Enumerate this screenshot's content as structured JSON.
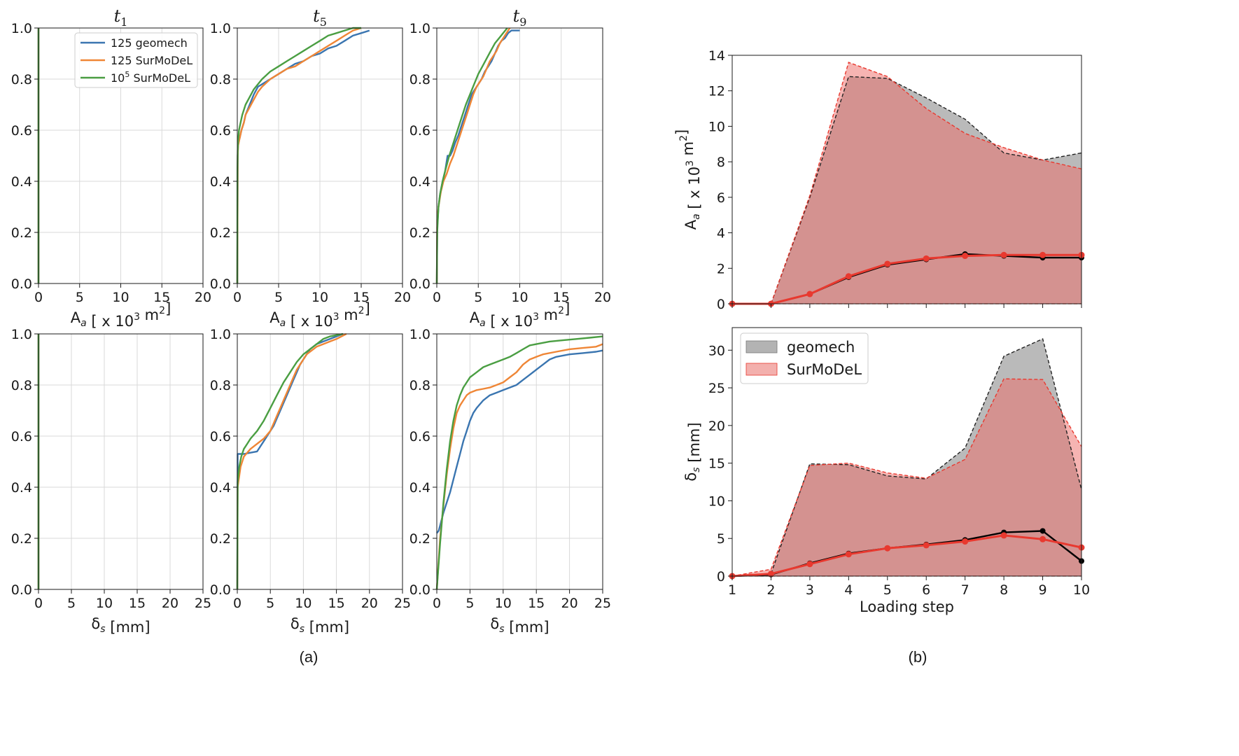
{
  "colors": {
    "geomech125": "#3a75b0",
    "surmodel125": "#ef8636",
    "surmodel1e5": "#4a9e42",
    "geomech": "#000000",
    "surmodel": "#e8392f"
  },
  "captions": {
    "a": "(a)",
    "b": "(b)"
  },
  "chart_data": [
    {
      "type": "line",
      "title": "t1",
      "xlabel": "A_a [ x 10^3 m^2]",
      "ylabel": "",
      "xlim": [
        0,
        20
      ],
      "ylim": [
        0,
        1
      ],
      "xticks": [
        "0",
        "5",
        "10",
        "15",
        "20"
      ],
      "yticks": [
        "0.0",
        "0.2",
        "0.4",
        "0.6",
        "0.8",
        "1.0"
      ],
      "legend": [
        "125 geomech",
        "125 SurMoDeL",
        "10^5 SurMoDeL"
      ],
      "series": [
        {
          "name": "125 geomech",
          "x": [
            0,
            0
          ],
          "y": [
            0,
            1
          ]
        },
        {
          "name": "125 SurMoDeL",
          "x": [
            0,
            0
          ],
          "y": [
            0,
            1
          ]
        },
        {
          "name": "10^5 SurMoDeL",
          "x": [
            0,
            0
          ],
          "y": [
            0,
            1
          ]
        }
      ]
    },
    {
      "type": "line",
      "title": "t5",
      "xlabel": "A_a [ x 10^3 m^2]",
      "xlim": [
        0,
        20
      ],
      "ylim": [
        0,
        1
      ],
      "xticks": [
        "0",
        "5",
        "10",
        "15",
        "20"
      ],
      "yticks": [
        "0.0",
        "0.2",
        "0.4",
        "0.6",
        "0.8",
        "1.0"
      ],
      "series": [
        {
          "name": "125 geomech",
          "x": [
            0,
            0.05,
            0.1,
            0.3,
            0.5,
            0.8,
            1.0,
            1.5,
            2.0,
            2.5,
            3.0,
            4.0,
            5.0,
            6.0,
            7.0,
            8.0,
            9.0,
            10.0,
            11.0,
            12.0,
            13.0,
            14.0,
            15.0,
            16.0
          ],
          "y": [
            0,
            0.5,
            0.55,
            0.57,
            0.6,
            0.63,
            0.66,
            0.7,
            0.74,
            0.77,
            0.78,
            0.8,
            0.82,
            0.84,
            0.86,
            0.87,
            0.89,
            0.9,
            0.92,
            0.93,
            0.95,
            0.97,
            0.98,
            0.99
          ]
        },
        {
          "name": "125 SurMoDeL",
          "x": [
            0,
            0.05,
            0.1,
            0.3,
            0.5,
            0.8,
            1.0,
            1.5,
            2.0,
            2.5,
            3.0,
            4.0,
            5.0,
            6.0,
            7.0,
            8.0,
            9.0,
            10.0,
            11.0,
            12.0,
            13.0,
            14.0,
            15.0
          ],
          "y": [
            0,
            0.5,
            0.54,
            0.57,
            0.6,
            0.63,
            0.66,
            0.69,
            0.72,
            0.75,
            0.77,
            0.8,
            0.82,
            0.84,
            0.85,
            0.87,
            0.89,
            0.91,
            0.93,
            0.95,
            0.97,
            0.99,
            1.0
          ]
        },
        {
          "name": "10^5 SurMoDeL",
          "x": [
            0,
            0.02,
            0.05,
            0.1,
            0.2,
            0.4,
            0.6,
            1.0,
            1.5,
            2.0,
            3.0,
            4.0,
            5.0,
            6.0,
            7.0,
            8.0,
            9.0,
            10.0,
            11.0,
            12.0,
            13.0,
            14.0,
            15.0
          ],
          "y": [
            0,
            0.45,
            0.52,
            0.56,
            0.6,
            0.63,
            0.66,
            0.7,
            0.73,
            0.76,
            0.8,
            0.83,
            0.85,
            0.87,
            0.89,
            0.91,
            0.93,
            0.95,
            0.97,
            0.98,
            0.99,
            1.0,
            1.0
          ]
        }
      ]
    },
    {
      "type": "line",
      "title": "t9",
      "xlabel": "A_a [ x 10^3 m^2]",
      "xlim": [
        0,
        20
      ],
      "ylim": [
        0,
        1
      ],
      "xticks": [
        "0",
        "5",
        "10",
        "15",
        "20"
      ],
      "yticks": [
        "0.0",
        "0.2",
        "0.4",
        "0.6",
        "0.8",
        "1.0"
      ],
      "series": [
        {
          "name": "125 geomech",
          "x": [
            0,
            0.05,
            0.2,
            0.4,
            0.7,
            1.0,
            1.3,
            1.6,
            1.9,
            2.2,
            2.6,
            3.0,
            3.4,
            3.8,
            4.2,
            4.6,
            5.0,
            5.4,
            5.8,
            6.2,
            6.6,
            7.0,
            7.4,
            7.8,
            8.2,
            8.6,
            9.0,
            10.0
          ],
          "y": [
            0,
            0.22,
            0.3,
            0.35,
            0.4,
            0.44,
            0.5,
            0.5,
            0.52,
            0.55,
            0.58,
            0.62,
            0.66,
            0.7,
            0.74,
            0.76,
            0.78,
            0.8,
            0.83,
            0.85,
            0.87,
            0.9,
            0.93,
            0.95,
            0.96,
            0.98,
            0.99,
            0.99
          ]
        },
        {
          "name": "125 SurMoDeL",
          "x": [
            0,
            0.05,
            0.2,
            0.5,
            0.8,
            1.2,
            1.6,
            2.0,
            2.4,
            2.8,
            3.2,
            3.6,
            4.0,
            4.4,
            4.8,
            5.2,
            5.6,
            6.0,
            6.4,
            6.8,
            7.2,
            7.6,
            8.0,
            8.4,
            8.8
          ],
          "y": [
            0,
            0.25,
            0.3,
            0.36,
            0.4,
            0.43,
            0.47,
            0.5,
            0.54,
            0.58,
            0.62,
            0.66,
            0.7,
            0.74,
            0.77,
            0.79,
            0.81,
            0.84,
            0.87,
            0.89,
            0.91,
            0.94,
            0.96,
            0.98,
            1.0
          ]
        },
        {
          "name": "10^5 SurMoDeL",
          "x": [
            0,
            0.05,
            0.2,
            0.4,
            0.7,
            1.0,
            1.5,
            2.0,
            2.5,
            3.0,
            3.5,
            4.0,
            4.5,
            5.0,
            5.5,
            6.0,
            6.5,
            7.0,
            7.5,
            8.0,
            8.5
          ],
          "y": [
            0,
            0.2,
            0.3,
            0.35,
            0.4,
            0.44,
            0.5,
            0.55,
            0.6,
            0.65,
            0.7,
            0.74,
            0.78,
            0.82,
            0.85,
            0.88,
            0.91,
            0.94,
            0.96,
            0.98,
            1.0
          ]
        }
      ]
    },
    {
      "type": "line",
      "title": "",
      "xlabel": "δ_s [mm]",
      "xlim": [
        0,
        25
      ],
      "ylim": [
        0,
        1
      ],
      "xticks": [
        "0",
        "5",
        "10",
        "15",
        "20",
        "25"
      ],
      "yticks": [
        "0.0",
        "0.2",
        "0.4",
        "0.6",
        "0.8",
        "1.0"
      ],
      "series": [
        {
          "name": "125 geomech",
          "x": [
            0,
            0
          ],
          "y": [
            0,
            1
          ]
        },
        {
          "name": "125 SurMoDeL",
          "x": [
            0,
            0
          ],
          "y": [
            0,
            1
          ]
        },
        {
          "name": "10^5 SurMoDeL",
          "x": [
            0,
            0
          ],
          "y": [
            0,
            1
          ]
        }
      ]
    },
    {
      "type": "line",
      "title": "",
      "xlabel": "δ_s [mm]",
      "xlim": [
        0,
        25
      ],
      "ylim": [
        0,
        1
      ],
      "xticks": [
        "0",
        "5",
        "10",
        "15",
        "20",
        "25"
      ],
      "yticks": [
        "0.0",
        "0.2",
        "0.4",
        "0.6",
        "0.8",
        "1.0"
      ],
      "series": [
        {
          "name": "125 geomech",
          "x": [
            0,
            0.05,
            0.5,
            1.0,
            2.0,
            3.0,
            3.5,
            4.0,
            4.5,
            5.0,
            5.5,
            6.0,
            6.5,
            7.0,
            7.5,
            8.0,
            8.5,
            9.0,
            9.5,
            10.0,
            10.5,
            11.0,
            11.5,
            12.0,
            13.0,
            14.0,
            15.0,
            16.0
          ],
          "y": [
            0,
            0.53,
            0.53,
            0.53,
            0.535,
            0.54,
            0.56,
            0.58,
            0.6,
            0.62,
            0.64,
            0.67,
            0.7,
            0.73,
            0.76,
            0.79,
            0.82,
            0.85,
            0.88,
            0.9,
            0.92,
            0.94,
            0.95,
            0.96,
            0.97,
            0.98,
            0.99,
            1.0
          ]
        },
        {
          "name": "125 SurMoDeL",
          "x": [
            0,
            0.05,
            0.5,
            1.0,
            2.0,
            3.0,
            4.0,
            5.0,
            5.5,
            6.0,
            6.5,
            7.0,
            7.5,
            8.0,
            8.5,
            9.0,
            9.5,
            10.0,
            10.5,
            11.0,
            11.5,
            12.0,
            13.0,
            14.0,
            15.0,
            16.5
          ],
          "y": [
            0,
            0.4,
            0.48,
            0.52,
            0.55,
            0.57,
            0.59,
            0.62,
            0.65,
            0.68,
            0.71,
            0.74,
            0.77,
            0.8,
            0.83,
            0.86,
            0.88,
            0.9,
            0.92,
            0.93,
            0.94,
            0.95,
            0.96,
            0.97,
            0.98,
            1.0
          ]
        },
        {
          "name": "10^5 SurMoDeL",
          "x": [
            0,
            0.05,
            0.3,
            0.6,
            1.0,
            1.5,
            2.0,
            3.0,
            4.0,
            5.0,
            6.0,
            7.0,
            8.0,
            9.0,
            10.0,
            11.0,
            12.0,
            13.0,
            14.0,
            15.0,
            16.0
          ],
          "y": [
            0,
            0.42,
            0.48,
            0.52,
            0.55,
            0.57,
            0.59,
            0.62,
            0.66,
            0.71,
            0.76,
            0.81,
            0.85,
            0.89,
            0.92,
            0.94,
            0.96,
            0.98,
            0.99,
            0.995,
            1.0
          ]
        }
      ]
    },
    {
      "type": "line",
      "title": "",
      "xlabel": "δ_s [mm]",
      "xlim": [
        0,
        25
      ],
      "ylim": [
        0,
        1
      ],
      "xticks": [
        "0",
        "5",
        "10",
        "15",
        "20",
        "25"
      ],
      "yticks": [
        "0.0",
        "0.2",
        "0.4",
        "0.6",
        "0.8",
        "1.0"
      ],
      "series": [
        {
          "name": "125 geomech",
          "x": [
            0,
            0.3,
            0.6,
            1.0,
            1.5,
            2.0,
            2.5,
            3.0,
            3.5,
            4.0,
            4.5,
            5.0,
            5.5,
            6.0,
            7.0,
            8.0,
            9.0,
            10.0,
            11.0,
            12.0,
            13.0,
            14.0,
            15.0,
            16.0,
            17.0,
            18.0,
            20.0,
            22.0,
            24.0,
            25.0
          ],
          "y": [
            0.22,
            0.23,
            0.26,
            0.3,
            0.34,
            0.38,
            0.43,
            0.48,
            0.53,
            0.58,
            0.62,
            0.66,
            0.69,
            0.71,
            0.74,
            0.76,
            0.77,
            0.78,
            0.79,
            0.8,
            0.82,
            0.84,
            0.86,
            0.88,
            0.9,
            0.91,
            0.92,
            0.925,
            0.93,
            0.935
          ]
        },
        {
          "name": "125 SurMoDeL",
          "x": [
            0,
            0.5,
            1.0,
            1.5,
            2.0,
            2.5,
            3.0,
            3.5,
            4.0,
            4.5,
            5.0,
            6.0,
            7.0,
            8.0,
            9.0,
            10.0,
            11.0,
            12.0,
            13.0,
            14.0,
            15.0,
            16.0,
            18.0,
            20.0,
            22.0,
            24.0,
            25.0
          ],
          "y": [
            0,
            0.2,
            0.33,
            0.45,
            0.55,
            0.63,
            0.69,
            0.72,
            0.74,
            0.76,
            0.77,
            0.78,
            0.785,
            0.79,
            0.8,
            0.81,
            0.83,
            0.85,
            0.88,
            0.9,
            0.91,
            0.92,
            0.93,
            0.94,
            0.945,
            0.95,
            0.96
          ]
        },
        {
          "name": "10^5 SurMoDeL",
          "x": [
            0,
            0.5,
            1.0,
            1.5,
            2.0,
            2.5,
            3.0,
            3.5,
            4.0,
            5.0,
            6.0,
            7.0,
            8.0,
            9.0,
            10.0,
            11.0,
            12.0,
            13.0,
            14.0,
            15.0,
            17.0,
            19.0,
            21.0,
            23.0,
            25.0
          ],
          "y": [
            0,
            0.18,
            0.34,
            0.47,
            0.58,
            0.66,
            0.72,
            0.76,
            0.79,
            0.83,
            0.85,
            0.87,
            0.88,
            0.89,
            0.9,
            0.91,
            0.925,
            0.94,
            0.955,
            0.96,
            0.97,
            0.975,
            0.98,
            0.985,
            0.99
          ]
        }
      ]
    },
    {
      "type": "area",
      "xlabel": "",
      "ylabel": "A_a [ x 10^3 m^2]",
      "xlim": [
        1,
        10
      ],
      "ylim": [
        0,
        14
      ],
      "xticks": [],
      "yticks": [
        "0",
        "2",
        "4",
        "6",
        "8",
        "10",
        "12",
        "14"
      ],
      "x": [
        1,
        2,
        3,
        4,
        5,
        6,
        7,
        8,
        9,
        10
      ],
      "series": [
        {
          "name": "geomech",
          "role": "max",
          "values": [
            0,
            0,
            6.0,
            12.8,
            12.7,
            11.6,
            10.4,
            8.5,
            8.1,
            8.5
          ]
        },
        {
          "name": "SurMoDeL",
          "role": "max",
          "values": [
            0,
            0,
            6.1,
            13.6,
            12.8,
            11.0,
            9.6,
            8.8,
            8.1,
            7.6
          ]
        },
        {
          "name": "geomech",
          "role": "mean",
          "values": [
            0,
            0,
            0.55,
            1.5,
            2.2,
            2.5,
            2.8,
            2.7,
            2.6,
            2.6
          ]
        },
        {
          "name": "SurMoDeL",
          "role": "mean",
          "values": [
            0,
            0,
            0.55,
            1.55,
            2.25,
            2.55,
            2.7,
            2.75,
            2.75,
            2.75
          ]
        }
      ]
    },
    {
      "type": "area",
      "xlabel": "Loading step",
      "ylabel": "δ_s [mm]",
      "xlim": [
        1,
        10
      ],
      "ylim": [
        0,
        33
      ],
      "xticks": [
        "1",
        "2",
        "3",
        "4",
        "5",
        "6",
        "7",
        "8",
        "9",
        "10"
      ],
      "yticks": [
        "0",
        "5",
        "10",
        "15",
        "20",
        "25",
        "30"
      ],
      "legend": [
        "geomech",
        "SurMoDeL"
      ],
      "x": [
        1,
        2,
        3,
        4,
        5,
        6,
        7,
        8,
        9,
        10
      ],
      "series": [
        {
          "name": "geomech",
          "role": "max",
          "values": [
            0,
            0.3,
            14.9,
            14.8,
            13.3,
            12.9,
            17.0,
            29.2,
            31.5,
            11.5
          ]
        },
        {
          "name": "SurMoDeL",
          "role": "max",
          "values": [
            0,
            0.9,
            14.7,
            15.0,
            13.7,
            13.0,
            15.5,
            26.2,
            26.1,
            17.2
          ]
        },
        {
          "name": "geomech",
          "role": "mean",
          "values": [
            0,
            0.2,
            1.7,
            3.0,
            3.7,
            4.2,
            4.8,
            5.8,
            6.0,
            2.0
          ]
        },
        {
          "name": "SurMoDeL",
          "role": "mean",
          "values": [
            0,
            0.3,
            1.6,
            2.9,
            3.7,
            4.1,
            4.6,
            5.4,
            4.9,
            3.8
          ]
        }
      ]
    }
  ]
}
